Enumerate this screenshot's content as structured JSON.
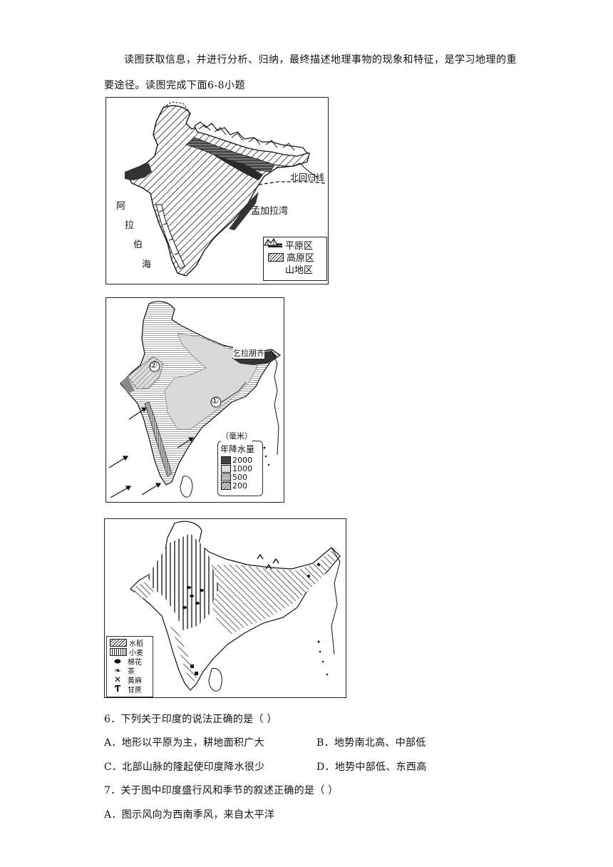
{
  "intro": "读图获取信息，并进行分析、归纳，最终描述地理事物的现象和特征，是学习地理的重要途径。读图完成下面6-8小题",
  "map1": {
    "labels": {
      "tropic": "北回归线",
      "bay": "孟加拉湾",
      "sea": [
        "阿",
        "拉",
        "伯",
        "海"
      ]
    },
    "legend": [
      {
        "name": "plain",
        "label": "平原区"
      },
      {
        "name": "plateau",
        "label": "高原区"
      },
      {
        "name": "mountain",
        "label": "山地区"
      }
    ]
  },
  "map2": {
    "labels": {
      "city": "乞拉朋齐",
      "marker1": "①",
      "marker2": "②"
    },
    "legend": {
      "unit": "（毫米）",
      "title": "年降水量",
      "values": [
        "2000",
        "1000",
        "500",
        "200"
      ]
    }
  },
  "map3": {
    "legend": [
      {
        "name": "rice",
        "label": "水稻"
      },
      {
        "name": "wheat",
        "label": "小麦"
      },
      {
        "name": "cotton",
        "label": "棉花"
      },
      {
        "name": "tea",
        "label": "茶"
      },
      {
        "name": "jute",
        "label": "黄麻"
      },
      {
        "name": "sugarcane",
        "label": "甘蔗"
      }
    ]
  },
  "q6": {
    "stem": "6．下列关于印度的说法正确的是（    ）",
    "A": "A．地形以平原为主，耕地面积广大",
    "B": "B．地势南北高、中部低",
    "C": "C．北部山脉的隆起使印度降水很少",
    "D": "D．地势中部低、东西高"
  },
  "q7": {
    "stem": "7．关于图中印度盛行风和季节的叙述正确的是（    ）",
    "A": "A．图示风向为西南季风，来自太平洋"
  }
}
